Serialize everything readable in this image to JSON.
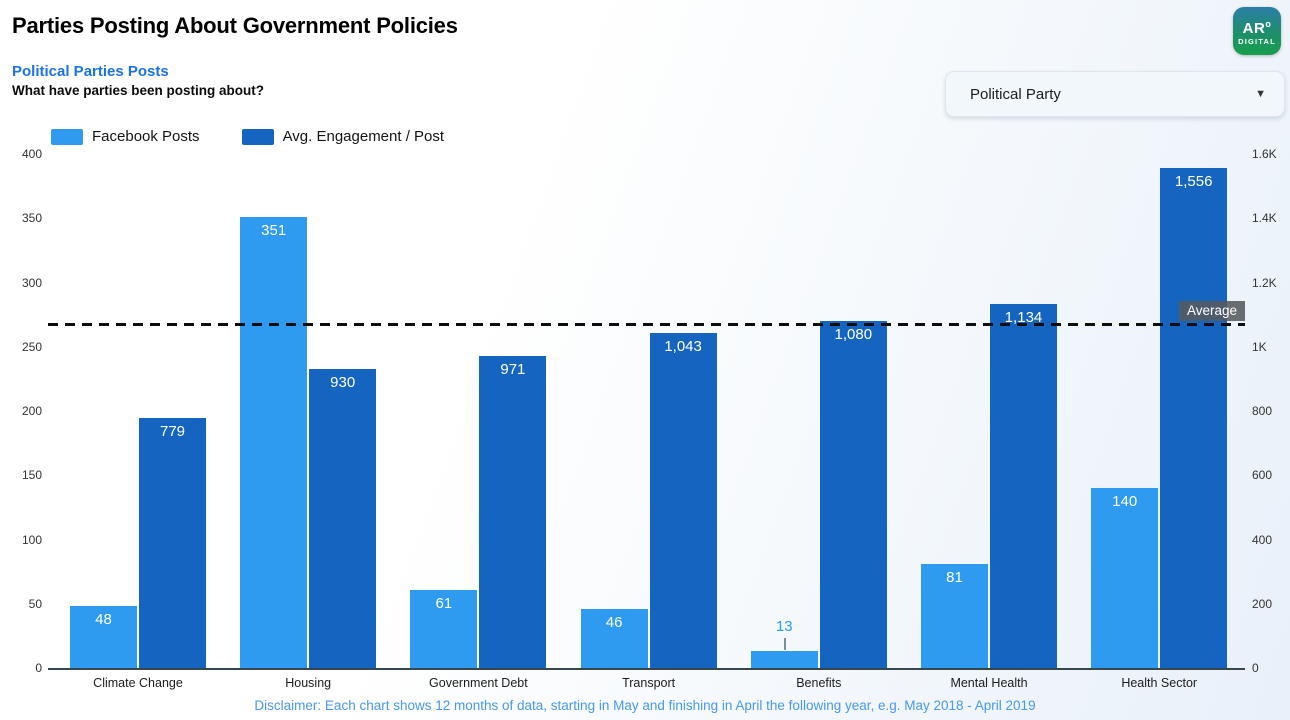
{
  "header": {
    "title": "Parties Posting About Government Policies",
    "subtitle": "Political Parties Posts",
    "question": "What have parties been posting about?",
    "logo": {
      "line1": "AR",
      "line1_sup": "o",
      "line2": "DIGITAL"
    }
  },
  "filter": {
    "label": "Political Party"
  },
  "legend": [
    {
      "label": "Facebook Posts",
      "color": "#2E9AF0"
    },
    {
      "label": "Avg. Engagement / Post",
      "color": "#1565C0"
    }
  ],
  "chart_data": {
    "type": "bar",
    "title": "Parties Posting About Government Policies",
    "categories": [
      "Climate Change",
      "Housing",
      "Government Debt",
      "Transport",
      "Benefits",
      "Mental Health",
      "Health Sector"
    ],
    "series": [
      {
        "name": "Facebook Posts",
        "axis": "left",
        "color": "#2E9AF0",
        "values": [
          48,
          351,
          61,
          46,
          13,
          81,
          140
        ]
      },
      {
        "name": "Avg. Engagement / Post",
        "axis": "right",
        "color": "#1565C0",
        "values": [
          779,
          930,
          971,
          1043,
          1080,
          1134,
          1556
        ]
      }
    ],
    "left_axis": {
      "min": 0,
      "max": 400,
      "ticks": [
        [
          0,
          "0"
        ],
        [
          50,
          "50"
        ],
        [
          100,
          "100"
        ],
        [
          150,
          "150"
        ],
        [
          200,
          "200"
        ],
        [
          250,
          "250"
        ],
        [
          300,
          "300"
        ],
        [
          350,
          "350"
        ],
        [
          400,
          "400"
        ]
      ]
    },
    "right_axis": {
      "min": 0,
      "max": 1600,
      "ticks": [
        [
          0,
          "0"
        ],
        [
          200,
          "200"
        ],
        [
          400,
          "400"
        ],
        [
          600,
          "600"
        ],
        [
          800,
          "800"
        ],
        [
          1000,
          "1K"
        ],
        [
          1200,
          "1.2K"
        ],
        [
          1400,
          "1.4K"
        ],
        [
          1600,
          "1.6K"
        ]
      ]
    },
    "average_line": {
      "label": "Average",
      "value": 1070,
      "axis": "right"
    },
    "legend_position": "top-left",
    "grid": false
  },
  "footer": {
    "disclaimer": "Disclaimer: Each chart shows 12 months of data, starting in May and finishing in April the following year, e.g. May 2018 - April 2019"
  }
}
